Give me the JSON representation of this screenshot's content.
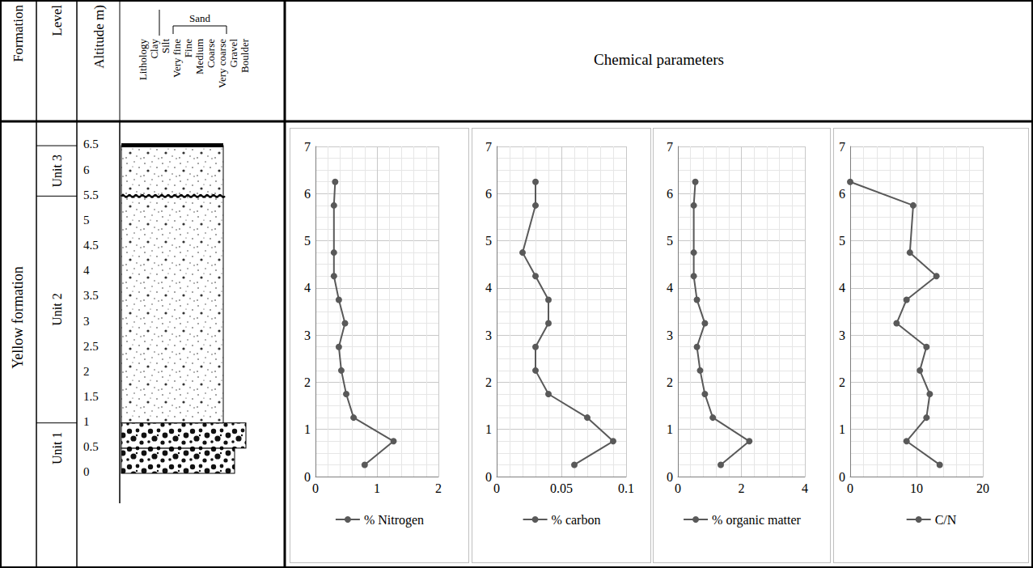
{
  "header": {
    "columns": [
      "Formation",
      "Level",
      "Altitude m)",
      "Lithology"
    ],
    "sand_group": "Sand",
    "grain_sizes": [
      "Clay",
      "Silt",
      "Very fine",
      "Fine",
      "Medium",
      "Coarse",
      "Very coarse",
      "Gravel",
      "Boulder"
    ],
    "chart_panel_title": "Chemical parameters"
  },
  "log": {
    "formation": "Yellow formation",
    "altitude_ticks": [
      0,
      0.5,
      1,
      1.5,
      2,
      2.5,
      3,
      3.5,
      4,
      4.5,
      5,
      5.5,
      6,
      6.5
    ],
    "units": [
      {
        "label": "Unit 1",
        "from": 0,
        "to": 1
      },
      {
        "label": "Unit 2",
        "from": 1,
        "to": 5.5
      },
      {
        "label": "Unit 3",
        "from": 5.5,
        "to": 6.5
      }
    ],
    "beds": [
      {
        "from": 0,
        "to": 0.5,
        "grain": "Gravel",
        "lithology": "gravel"
      },
      {
        "from": 0.5,
        "to": 1,
        "grain": "Boulder",
        "lithology": "gravel"
      },
      {
        "from": 1,
        "to": 5.5,
        "grain": "Very coarse",
        "lithology": "sand"
      },
      {
        "from": 5.5,
        "to": 6.5,
        "grain": "Very coarse",
        "lithology": "sand"
      }
    ],
    "erosion_surface": 5.5
  },
  "chart_data": [
    {
      "type": "line",
      "orientation": "horizontal",
      "grid": true,
      "legend": "bottom",
      "y": [
        0.25,
        0.75,
        1.25,
        1.75,
        2.25,
        2.75,
        3.25,
        3.75,
        4.25,
        4.75,
        5.75,
        6.25
      ],
      "series": [
        {
          "name": "% Nitrogen",
          "color": "#595959",
          "marker": "circle",
          "values": [
            0.8,
            1.27,
            0.62,
            0.5,
            0.42,
            0.38,
            0.48,
            0.38,
            0.3,
            0.3,
            0.3,
            0.32
          ]
        }
      ],
      "xlim": [
        0,
        2
      ],
      "xticks": [
        0,
        1,
        2
      ],
      "ylim": [
        0,
        7
      ],
      "yticks": [
        0,
        1,
        2,
        3,
        4,
        5,
        6,
        7
      ]
    },
    {
      "type": "line",
      "orientation": "horizontal",
      "grid": true,
      "legend": "bottom",
      "y": [
        0.25,
        0.75,
        1.25,
        1.75,
        2.25,
        2.75,
        3.25,
        3.75,
        4.25,
        4.75,
        5.75,
        6.25
      ],
      "series": [
        {
          "name": "% carbon",
          "color": "#595959",
          "marker": "circle",
          "values": [
            0.06,
            0.09,
            0.07,
            0.04,
            0.03,
            0.03,
            0.04,
            0.04,
            0.03,
            0.02,
            0.03,
            0.03
          ]
        }
      ],
      "xlim": [
        0,
        0.1
      ],
      "xticks": [
        0,
        0.05,
        0.1
      ],
      "ylim": [
        0,
        7
      ],
      "yticks": [
        0,
        1,
        2,
        3,
        4,
        5,
        6,
        7
      ]
    },
    {
      "type": "line",
      "orientation": "horizontal",
      "grid": true,
      "legend": "bottom",
      "y": [
        0.25,
        0.75,
        1.25,
        1.75,
        2.25,
        2.75,
        3.25,
        3.75,
        4.25,
        4.75,
        5.75,
        6.25
      ],
      "series": [
        {
          "name": "% organic matter",
          "color": "#595959",
          "marker": "circle",
          "values": [
            1.35,
            2.25,
            1.1,
            0.85,
            0.7,
            0.6,
            0.85,
            0.6,
            0.5,
            0.5,
            0.5,
            0.55
          ]
        }
      ],
      "xlim": [
        0,
        4
      ],
      "xticks": [
        0,
        2,
        4
      ],
      "ylim": [
        0,
        7
      ],
      "yticks": [
        0,
        1,
        2,
        3,
        4,
        5,
        6,
        7
      ]
    },
    {
      "type": "line",
      "orientation": "horizontal",
      "grid": true,
      "legend": "bottom",
      "y": [
        0.25,
        0.75,
        1.25,
        1.75,
        2.25,
        2.75,
        3.25,
        3.75,
        4.25,
        4.75,
        5.75,
        6.25
      ],
      "series": [
        {
          "name": "C/N",
          "color": "#595959",
          "marker": "circle",
          "values": [
            13.5,
            8.5,
            11.5,
            12,
            10.5,
            11.5,
            7,
            8.5,
            13,
            9,
            9.5,
            0
          ]
        }
      ],
      "xlim": [
        0,
        20
      ],
      "xticks": [
        0,
        10,
        20
      ],
      "ylim": [
        0,
        7
      ],
      "yticks": [
        0,
        1,
        2,
        3,
        4,
        5,
        6,
        7
      ]
    }
  ]
}
